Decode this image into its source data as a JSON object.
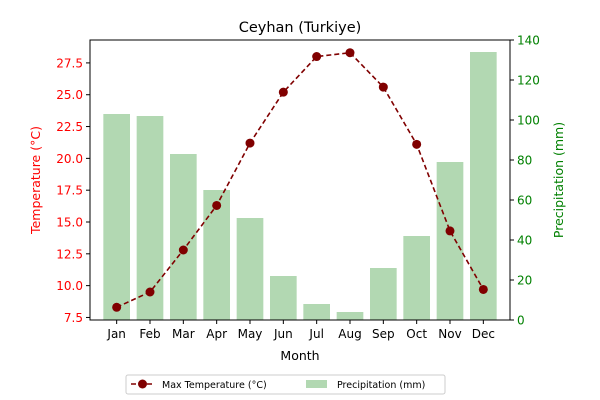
{
  "chart_data": {
    "type": "bar+line",
    "title": "Ceyhan (Turkiye)",
    "xlabel": "Month",
    "ylabel_left": "Temperature (°C)",
    "ylabel_right": "Precipitation (mm)",
    "categories": [
      "Jan",
      "Feb",
      "Mar",
      "Apr",
      "May",
      "Jun",
      "Jul",
      "Aug",
      "Sep",
      "Oct",
      "Nov",
      "Dec"
    ],
    "left_axis": {
      "ylim": [
        7.3,
        29.3
      ],
      "ticks": [
        7.5,
        10.0,
        12.5,
        15.0,
        17.5,
        20.0,
        22.5,
        25.0,
        27.5
      ],
      "color": "#ff0000"
    },
    "right_axis": {
      "ylim": [
        0,
        140
      ],
      "ticks": [
        0,
        20,
        40,
        60,
        80,
        100,
        120,
        140
      ],
      "color": "#008000"
    },
    "series": [
      {
        "name": "Max Temperature (°C)",
        "kind": "line",
        "axis": "left",
        "color": "#800000",
        "values": [
          8.3,
          9.5,
          12.8,
          16.3,
          21.2,
          25.2,
          28.0,
          28.3,
          25.6,
          21.1,
          14.3,
          9.7
        ]
      },
      {
        "name": "Precipitation (mm)",
        "kind": "bar",
        "axis": "right",
        "color": "#b2d8b2",
        "values": [
          103,
          102,
          83,
          65,
          51,
          22,
          8,
          4,
          26,
          42,
          79,
          134
        ]
      }
    ],
    "legend_position": "bottom-center",
    "grid": false
  }
}
